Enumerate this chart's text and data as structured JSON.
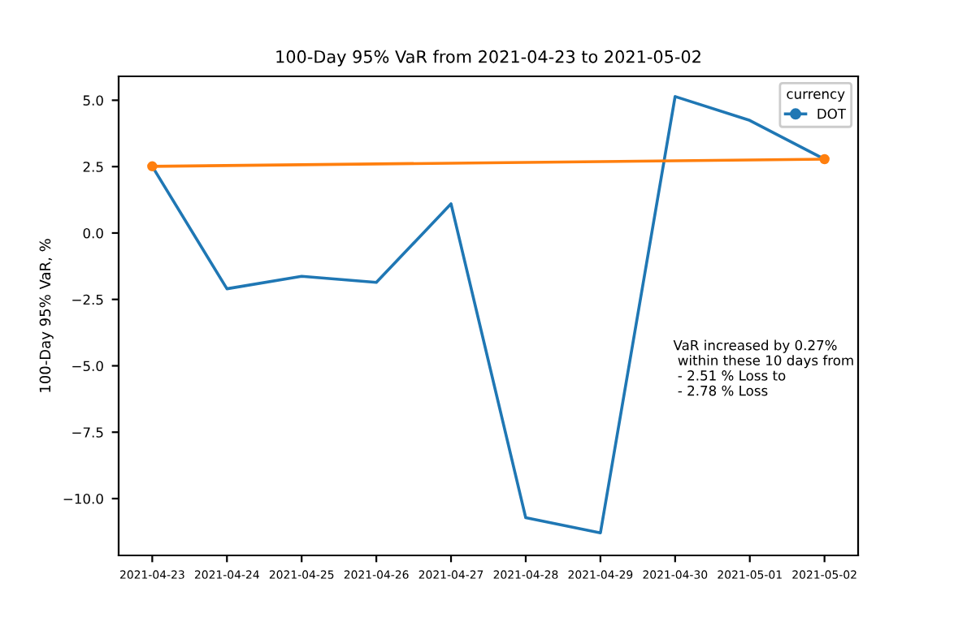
{
  "chart_data": {
    "type": "line",
    "title": "100-Day 95% VaR from 2021-04-23 to 2021-05-02",
    "ylabel": "100-Day 95% VaR, %",
    "x": [
      "2021-04-23",
      "2021-04-24",
      "2021-04-25",
      "2021-04-26",
      "2021-04-27",
      "2021-04-28",
      "2021-04-29",
      "2021-04-30",
      "2021-05-01",
      "2021-05-02"
    ],
    "series": [
      {
        "name": "DOT",
        "color": "#1f77b4",
        "values": [
          2.51,
          -2.1,
          -1.63,
          -1.86,
          1.1,
          -10.72,
          -11.29,
          5.14,
          4.24,
          2.78
        ]
      },
      {
        "color": "#ff7f0e",
        "x": [
          "2021-04-23",
          "2021-05-02"
        ],
        "values": [
          2.51,
          2.78
        ],
        "marker": "circle"
      }
    ],
    "legend_title": "currency",
    "legend": "top right",
    "annotations": [
      "VaR increased by 0.27%\n within these 10 days from\n - 2.51 % Loss to\n - 2.78 % Loss"
    ],
    "xlim": [
      "2021-04-22T13:12",
      "2021-05-02T10:48"
    ],
    "xticks": [
      "2021-04-23",
      "2021-04-24",
      "2021-04-25",
      "2021-04-26",
      "2021-04-27",
      "2021-04-28",
      "2021-04-29",
      "2021-04-30",
      "2021-05-01",
      "2021-05-02"
    ],
    "ylim": [
      -12.14,
      5.9
    ],
    "yticks": [
      {
        "value": -10.0,
        "label": "−10.0"
      },
      {
        "value": -7.5,
        "label": "−7.5"
      },
      {
        "value": -5.0,
        "label": "−5.0"
      },
      {
        "value": -2.5,
        "label": "−2.5"
      },
      {
        "value": 0.0,
        "label": "0.0"
      },
      {
        "value": 2.5,
        "label": "2.5"
      },
      {
        "value": 5.0,
        "label": "5.0"
      }
    ]
  }
}
